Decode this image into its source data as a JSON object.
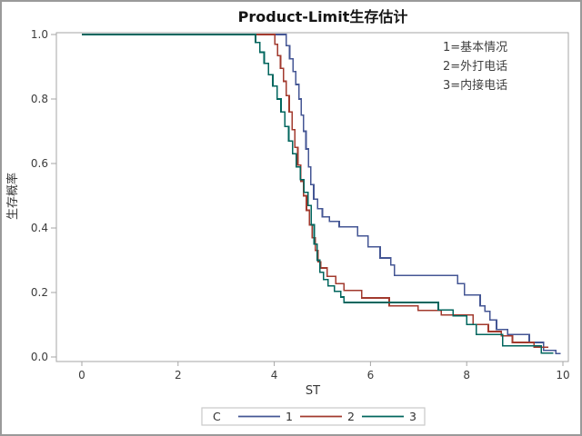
{
  "figure": {
    "background": "#ffffff",
    "border_color": "#9a9a9a",
    "frame_color": "#a6a6a6"
  },
  "chart_data": {
    "type": "line",
    "subtype": "kaplan-meier-step-survival",
    "title": "Product-Limit生存估计",
    "xlabel": "ST",
    "ylabel": "生存概率",
    "xlim": [
      0,
      10
    ],
    "ylim": [
      0.0,
      1.0
    ],
    "xticks": [
      0,
      2,
      4,
      6,
      8,
      10
    ],
    "yticks": [
      0.0,
      0.2,
      0.4,
      0.6,
      0.8,
      1.0
    ],
    "grid": false,
    "legend": {
      "title": "C",
      "position": "bottom",
      "entries": [
        {
          "label": "1",
          "color": "#445694"
        },
        {
          "label": "2",
          "color": "#A23A2E"
        },
        {
          "label": "3",
          "color": "#01665E"
        }
      ]
    },
    "annotations": [
      "1=基本情况",
      "2=外打电话",
      "3=内接电话"
    ],
    "series": [
      {
        "name": "1",
        "meaning": "基本情况",
        "color": "#445694",
        "start": [
          0,
          1.0
        ],
        "steps": [
          [
            4.25,
            0.965
          ],
          [
            4.32,
            0.925
          ],
          [
            4.39,
            0.885
          ],
          [
            4.45,
            0.845
          ],
          [
            4.51,
            0.8
          ],
          [
            4.56,
            0.75
          ],
          [
            4.61,
            0.7
          ],
          [
            4.66,
            0.645
          ],
          [
            4.71,
            0.59
          ],
          [
            4.76,
            0.535
          ],
          [
            4.82,
            0.49
          ],
          [
            4.9,
            0.46
          ],
          [
            5.0,
            0.435
          ],
          [
            5.15,
            0.42
          ],
          [
            5.35,
            0.403
          ],
          [
            5.73,
            0.375
          ],
          [
            5.95,
            0.341
          ],
          [
            6.2,
            0.307
          ],
          [
            6.42,
            0.285
          ],
          [
            6.5,
            0.253
          ],
          [
            7.81,
            0.228
          ],
          [
            7.95,
            0.192
          ],
          [
            8.28,
            0.158
          ],
          [
            8.38,
            0.141
          ],
          [
            8.48,
            0.115
          ],
          [
            8.62,
            0.085
          ],
          [
            8.85,
            0.07
          ],
          [
            9.3,
            0.045
          ],
          [
            9.6,
            0.02
          ],
          [
            9.85,
            0.01
          ]
        ],
        "end_t": 9.95
      },
      {
        "name": "2",
        "meaning": "外打电话",
        "color": "#A23A2E",
        "start": [
          0,
          1.0
        ],
        "steps": [
          [
            4.01,
            0.97
          ],
          [
            4.07,
            0.935
          ],
          [
            4.13,
            0.895
          ],
          [
            4.19,
            0.855
          ],
          [
            4.25,
            0.81
          ],
          [
            4.31,
            0.76
          ],
          [
            4.37,
            0.705
          ],
          [
            4.43,
            0.65
          ],
          [
            4.49,
            0.595
          ],
          [
            4.55,
            0.545
          ],
          [
            4.61,
            0.5
          ],
          [
            4.67,
            0.455
          ],
          [
            4.73,
            0.41
          ],
          [
            4.79,
            0.37
          ],
          [
            4.85,
            0.33
          ],
          [
            4.91,
            0.295
          ],
          [
            4.97,
            0.276
          ],
          [
            5.1,
            0.25
          ],
          [
            5.28,
            0.228
          ],
          [
            5.45,
            0.206
          ],
          [
            5.82,
            0.183
          ],
          [
            6.39,
            0.158
          ],
          [
            6.99,
            0.144
          ],
          [
            7.47,
            0.13
          ],
          [
            8.13,
            0.101
          ],
          [
            8.45,
            0.079
          ],
          [
            8.72,
            0.065
          ],
          [
            8.95,
            0.045
          ],
          [
            9.4,
            0.03
          ]
        ],
        "end_t": 9.7
      },
      {
        "name": "3",
        "meaning": "内接电话",
        "color": "#01665E",
        "start": [
          0,
          1.0
        ],
        "steps": [
          [
            3.61,
            0.975
          ],
          [
            3.7,
            0.945
          ],
          [
            3.79,
            0.91
          ],
          [
            3.88,
            0.875
          ],
          [
            3.97,
            0.84
          ],
          [
            4.06,
            0.8
          ],
          [
            4.14,
            0.76
          ],
          [
            4.22,
            0.715
          ],
          [
            4.3,
            0.67
          ],
          [
            4.38,
            0.63
          ],
          [
            4.46,
            0.59
          ],
          [
            4.54,
            0.55
          ],
          [
            4.62,
            0.51
          ],
          [
            4.7,
            0.47
          ],
          [
            4.77,
            0.41
          ],
          [
            4.83,
            0.35
          ],
          [
            4.89,
            0.3
          ],
          [
            4.95,
            0.263
          ],
          [
            5.02,
            0.24
          ],
          [
            5.12,
            0.22
          ],
          [
            5.25,
            0.203
          ],
          [
            5.38,
            0.186
          ],
          [
            5.45,
            0.169
          ],
          [
            7.41,
            0.146
          ],
          [
            7.72,
            0.127
          ],
          [
            8.0,
            0.101
          ],
          [
            8.2,
            0.07
          ],
          [
            8.75,
            0.034
          ],
          [
            9.55,
            0.012
          ]
        ],
        "end_t": 9.8
      }
    ]
  }
}
